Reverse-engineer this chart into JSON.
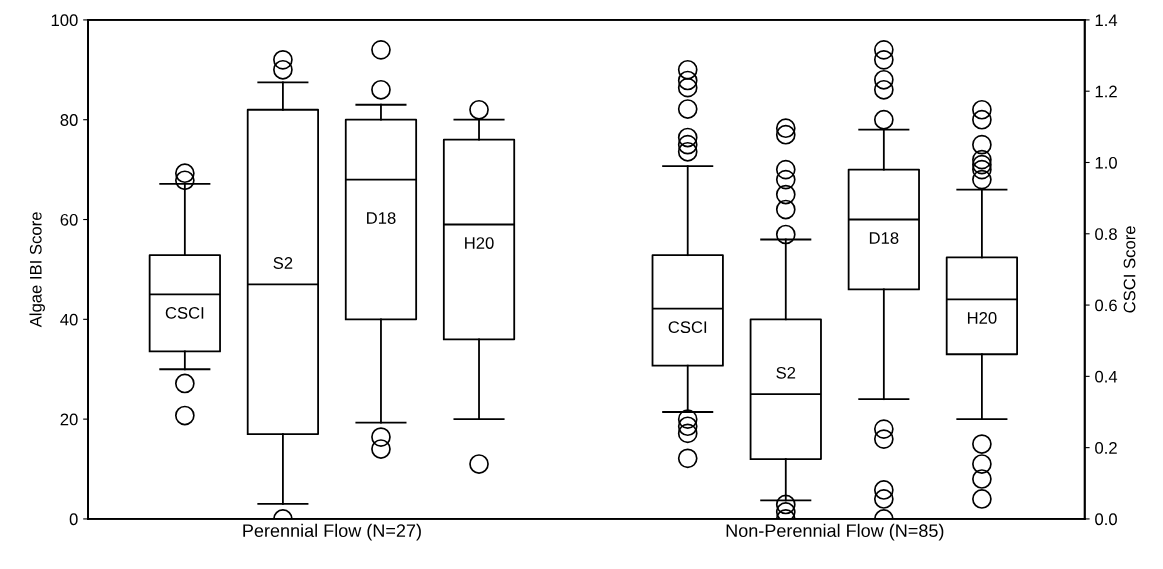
{
  "chart_data": {
    "type": "box",
    "categories": [
      "Perennial Flow (N=27)",
      "Non-Perennial Flow (N=85)"
    ],
    "ylabel": "Algae IBI Score",
    "y2label": "CSCI Score",
    "ylim": [
      0,
      100
    ],
    "yticks": [
      0,
      20,
      40,
      60,
      80,
      100
    ],
    "y2lim": [
      0,
      1.4
    ],
    "y2ticks": [
      {
        "value": 0,
        "label": "0.0"
      },
      {
        "value": 0.2,
        "label": "0.2"
      },
      {
        "value": 0.4,
        "label": "0.4"
      },
      {
        "value": 0.6,
        "label": "0.6"
      },
      {
        "value": 0.8,
        "label": "0.8"
      },
      {
        "value": 1.0,
        "label": "1.0"
      },
      {
        "value": 1.2,
        "label": "1.2"
      },
      {
        "value": 1.4,
        "label": "1.4"
      }
    ],
    "grid": false,
    "marker": "circle",
    "series": [
      {
        "name": "CSCI",
        "color": "#000000",
        "axis": "y2",
        "boxes": [
          {
            "low": 0.42,
            "q1": 0.47,
            "median": 0.63,
            "q3": 0.74,
            "high": 0.94,
            "outliers": [
              0.97,
              0.95,
              0.38,
              0.29
            ]
          },
          {
            "low": 0.3,
            "q1": 0.43,
            "median": 0.59,
            "q3": 0.74,
            "high": 0.99,
            "outliers": [
              1.26,
              1.23,
              1.21,
              1.15,
              1.07,
              1.05,
              1.03,
              0.28,
              0.26,
              0.24,
              0.17
            ]
          }
        ]
      },
      {
        "name": "S2",
        "color": "#000000",
        "boxes": [
          {
            "low": 3,
            "q1": 17,
            "median": 47,
            "q3": 82,
            "high": 87.5,
            "outliers": [
              92,
              90,
              0
            ]
          },
          {
            "low": 3.7,
            "q1": 12,
            "median": 25,
            "q3": 40,
            "high": 56,
            "outliers": [
              78.3,
              77,
              70,
              68,
              65,
              62,
              57,
              2.9,
              1.4,
              0
            ]
          }
        ]
      },
      {
        "name": "D18",
        "color": "#000000",
        "boxes": [
          {
            "low": 19.3,
            "q1": 40,
            "median": 68,
            "q3": 80,
            "high": 83,
            "outliers": [
              94,
              86,
              16.4,
              14
            ]
          },
          {
            "low": 24,
            "q1": 46,
            "median": 60,
            "q3": 70,
            "high": 78,
            "outliers": [
              94,
              92,
              88,
              86,
              80,
              18,
              16,
              5.8,
              4,
              0
            ]
          }
        ]
      },
      {
        "name": "H20",
        "color": "#000000",
        "boxes": [
          {
            "low": 20,
            "q1": 36,
            "median": 59,
            "q3": 76,
            "high": 80,
            "outliers": [
              82,
              11
            ]
          },
          {
            "low": 20,
            "q1": 33,
            "median": 44,
            "q3": 52.4,
            "high": 66,
            "outliers": [
              82,
              80,
              75,
              72,
              71,
              70,
              68,
              15,
              11,
              8,
              4
            ]
          }
        ]
      }
    ]
  }
}
